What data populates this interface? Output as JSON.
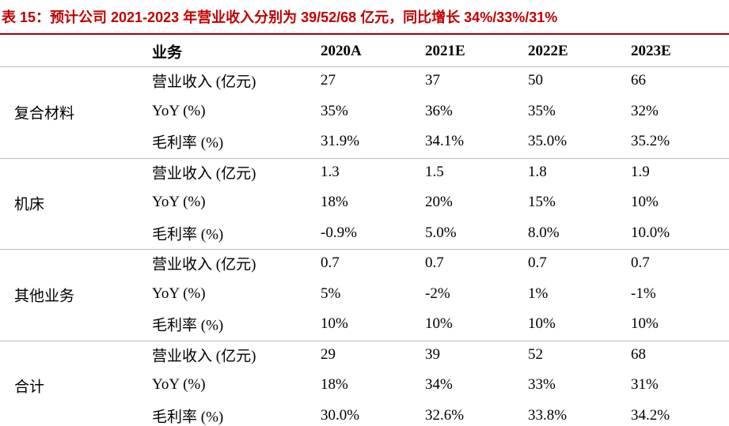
{
  "title": "表 15：预计公司 2021-2023 年营业收入分别为 39/52/68 亿元，同比增长 34%/33%/31%",
  "table": {
    "header": [
      "业务",
      "2020A",
      "2021E",
      "2022E",
      "2023E"
    ],
    "groups": [
      {
        "name": "复合材料",
        "rows": [
          [
            "营业收入 (亿元)",
            "27",
            "37",
            "50",
            "66"
          ],
          [
            "YoY (%)",
            "35%",
            "36%",
            "35%",
            "32%"
          ],
          [
            "毛利率 (%)",
            "31.9%",
            "34.1%",
            "35.0%",
            "35.2%"
          ]
        ]
      },
      {
        "name": "机床",
        "rows": [
          [
            "营业收入 (亿元)",
            "1.3",
            "1.5",
            "1.8",
            "1.9"
          ],
          [
            "YoY (%)",
            "18%",
            "20%",
            "15%",
            "10%"
          ],
          [
            "毛利率 (%)",
            "-0.9%",
            "5.0%",
            "8.0%",
            "10.0%"
          ]
        ]
      },
      {
        "name": "其他业务",
        "rows": [
          [
            "营业收入 (亿元)",
            "0.7",
            "0.7",
            "0.7",
            "0.7"
          ],
          [
            "YoY (%)",
            "5%",
            "-2%",
            "1%",
            "-1%"
          ],
          [
            "毛利率 (%)",
            "10%",
            "10%",
            "10%",
            "10%"
          ]
        ]
      },
      {
        "name": "合计",
        "rows": [
          [
            "营业收入 (亿元)",
            "29",
            "39",
            "52",
            "68"
          ],
          [
            "YoY (%)",
            "18%",
            "34%",
            "33%",
            "31%"
          ],
          [
            "毛利率 (%)",
            "30.0%",
            "32.6%",
            "33.8%",
            "34.2%"
          ]
        ]
      }
    ]
  }
}
